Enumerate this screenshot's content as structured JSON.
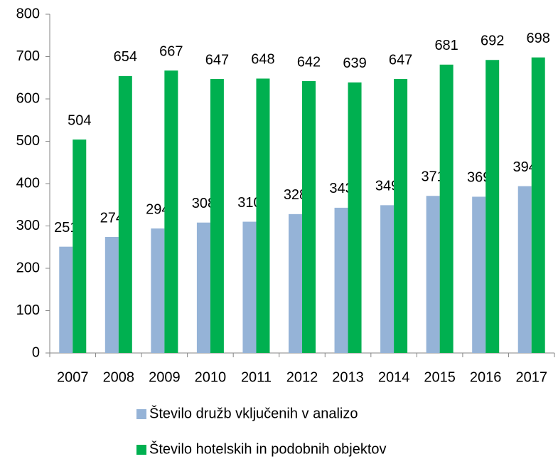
{
  "chart_data": {
    "type": "bar",
    "categories": [
      "2007",
      "2008",
      "2009",
      "2010",
      "2011",
      "2012",
      "2013",
      "2014",
      "2015",
      "2016",
      "2017"
    ],
    "series": [
      {
        "name": "Število družb vključenih v analizo",
        "color": "#95b3d7",
        "values": [
          251,
          274,
          294,
          308,
          310,
          328,
          343,
          349,
          371,
          369,
          394
        ]
      },
      {
        "name": "Število hotelskih in podobnih objektov",
        "color": "#00b050",
        "values": [
          504,
          654,
          667,
          647,
          648,
          642,
          639,
          647,
          681,
          692,
          698
        ]
      }
    ],
    "ylim": [
      0,
      800
    ],
    "yticks": [
      0,
      100,
      200,
      300,
      400,
      500,
      600,
      700,
      800
    ],
    "grid": false,
    "legend": "bottom"
  }
}
